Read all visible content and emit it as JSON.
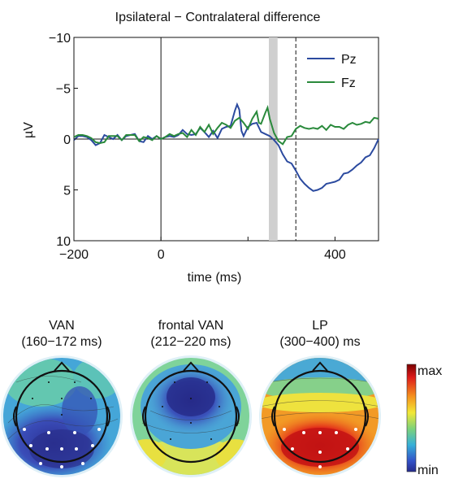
{
  "chart_data": [
    {
      "type": "line",
      "title": "Ipsilateral − Contralateral difference",
      "xlabel": "time (ms)",
      "ylabel": "µV",
      "xlim": [
        -200,
        500
      ],
      "ylim": [
        -10,
        10
      ],
      "y_inverted": true,
      "x_ticks": [
        -200,
        0,
        200,
        400
      ],
      "x_tick_labels": [
        "−200",
        "0",
        "",
        "400"
      ],
      "y_ticks": [
        -10,
        -5,
        0,
        5,
        10
      ],
      "y_tick_labels": [
        "−10",
        "−5",
        "0",
        "5",
        "10"
      ],
      "grid": false,
      "legend_position": "top-right",
      "shaded_interval": [
        248,
        268
      ],
      "dashed_line_x": 310,
      "vertical_zero_line_x": 0,
      "series": [
        {
          "name": "Pz",
          "color": "#2b4a9f",
          "points": [
            [
              -200,
              0.1
            ],
            [
              -190,
              -0.3
            ],
            [
              -180,
              -0.3
            ],
            [
              -170,
              -0.2
            ],
            [
              -160,
              0.1
            ],
            [
              -150,
              0.6
            ],
            [
              -140,
              0.4
            ],
            [
              -130,
              -0.4
            ],
            [
              -120,
              -0.2
            ],
            [
              -110,
              0.0
            ],
            [
              -100,
              -0.4
            ],
            [
              -90,
              0.1
            ],
            [
              -80,
              -0.3
            ],
            [
              -70,
              -0.4
            ],
            [
              -60,
              -0.5
            ],
            [
              -50,
              0.2
            ],
            [
              -40,
              0.3
            ],
            [
              -30,
              -0.3
            ],
            [
              -20,
              0.0
            ],
            [
              -10,
              -0.3
            ],
            [
              0,
              0.0
            ],
            [
              10,
              -0.2
            ],
            [
              20,
              -0.3
            ],
            [
              30,
              -0.2
            ],
            [
              40,
              -0.4
            ],
            [
              50,
              -0.9
            ],
            [
              60,
              -0.5
            ],
            [
              70,
              -0.4
            ],
            [
              80,
              -0.5
            ],
            [
              90,
              -1.1
            ],
            [
              100,
              -0.7
            ],
            [
              110,
              -0.2
            ],
            [
              120,
              -0.8
            ],
            [
              130,
              -0.1
            ],
            [
              140,
              -1.0
            ],
            [
              150,
              -1.2
            ],
            [
              160,
              -1.3
            ],
            [
              170,
              -2.8
            ],
            [
              175,
              -3.4
            ],
            [
              180,
              -2.9
            ],
            [
              185,
              -0.8
            ],
            [
              190,
              -0.3
            ],
            [
              200,
              -1.2
            ],
            [
              210,
              -1.5
            ],
            [
              220,
              -1.6
            ],
            [
              230,
              -0.7
            ],
            [
              240,
              -0.5
            ],
            [
              250,
              -0.3
            ],
            [
              260,
              0.1
            ],
            [
              270,
              0.6
            ],
            [
              280,
              1.5
            ],
            [
              290,
              2.2
            ],
            [
              300,
              2.4
            ],
            [
              310,
              3.1
            ],
            [
              320,
              3.9
            ],
            [
              330,
              4.4
            ],
            [
              340,
              4.8
            ],
            [
              350,
              5.1
            ],
            [
              360,
              5.0
            ],
            [
              370,
              4.8
            ],
            [
              380,
              4.4
            ],
            [
              390,
              4.3
            ],
            [
              400,
              4.2
            ],
            [
              410,
              4.0
            ],
            [
              420,
              3.4
            ],
            [
              430,
              3.3
            ],
            [
              440,
              3.0
            ],
            [
              450,
              2.6
            ],
            [
              460,
              2.3
            ],
            [
              470,
              1.8
            ],
            [
              480,
              1.6
            ],
            [
              490,
              0.9
            ],
            [
              500,
              0.0
            ]
          ]
        },
        {
          "name": "Fz",
          "color": "#2a8a3c",
          "points": [
            [
              -200,
              -0.2
            ],
            [
              -190,
              -0.4
            ],
            [
              -180,
              -0.4
            ],
            [
              -170,
              -0.3
            ],
            [
              -160,
              -0.1
            ],
            [
              -150,
              0.3
            ],
            [
              -140,
              0.4
            ],
            [
              -130,
              0.3
            ],
            [
              -120,
              -0.3
            ],
            [
              -110,
              -0.3
            ],
            [
              -100,
              -0.3
            ],
            [
              -90,
              0.1
            ],
            [
              -80,
              -0.4
            ],
            [
              -70,
              -0.4
            ],
            [
              -60,
              -0.4
            ],
            [
              -50,
              0.2
            ],
            [
              -40,
              -0.2
            ],
            [
              -30,
              -0.1
            ],
            [
              -20,
              0.1
            ],
            [
              -10,
              -0.3
            ],
            [
              0,
              0.0
            ],
            [
              10,
              -0.2
            ],
            [
              20,
              -0.5
            ],
            [
              30,
              -0.3
            ],
            [
              40,
              -0.5
            ],
            [
              50,
              -0.6
            ],
            [
              60,
              -0.2
            ],
            [
              70,
              -0.9
            ],
            [
              80,
              -0.4
            ],
            [
              90,
              -1.2
            ],
            [
              100,
              -0.7
            ],
            [
              110,
              -1.4
            ],
            [
              120,
              -0.5
            ],
            [
              130,
              -1.1
            ],
            [
              140,
              -1.6
            ],
            [
              150,
              -1.4
            ],
            [
              160,
              -1.1
            ],
            [
              170,
              -1.8
            ],
            [
              180,
              -2.1
            ],
            [
              190,
              -1.6
            ],
            [
              200,
              -1.0
            ],
            [
              210,
              -2.0
            ],
            [
              220,
              -2.7
            ],
            [
              225,
              -1.6
            ],
            [
              230,
              -1.5
            ],
            [
              240,
              -2.6
            ],
            [
              245,
              -3.1
            ],
            [
              250,
              -2.0
            ],
            [
              260,
              -0.6
            ],
            [
              270,
              0.2
            ],
            [
              280,
              0.5
            ],
            [
              290,
              -0.2
            ],
            [
              300,
              -0.3
            ],
            [
              310,
              -1.0
            ],
            [
              320,
              -1.3
            ],
            [
              330,
              -1.1
            ],
            [
              340,
              -1.0
            ],
            [
              350,
              -1.1
            ],
            [
              360,
              -1.0
            ],
            [
              370,
              -1.3
            ],
            [
              380,
              -0.9
            ],
            [
              390,
              -1.4
            ],
            [
              400,
              -1.2
            ],
            [
              410,
              -1.2
            ],
            [
              420,
              -1.0
            ],
            [
              430,
              -1.4
            ],
            [
              440,
              -1.6
            ],
            [
              450,
              -1.4
            ],
            [
              460,
              -1.5
            ],
            [
              470,
              -1.7
            ],
            [
              480,
              -1.6
            ],
            [
              490,
              -2.1
            ],
            [
              500,
              -2.0
            ]
          ]
        }
      ]
    },
    {
      "type": "heatmap",
      "colorbar": {
        "max_label": "max",
        "min_label": "min"
      },
      "maps": [
        {
          "title": "VAN",
          "window": "(160−172 ms)",
          "pattern": "van"
        },
        {
          "title": "frontal VAN",
          "window": "(212−220 ms)",
          "pattern": "frontal_van"
        },
        {
          "title": "LP",
          "window": "(300−400) ms",
          "pattern": "lp"
        }
      ]
    }
  ]
}
